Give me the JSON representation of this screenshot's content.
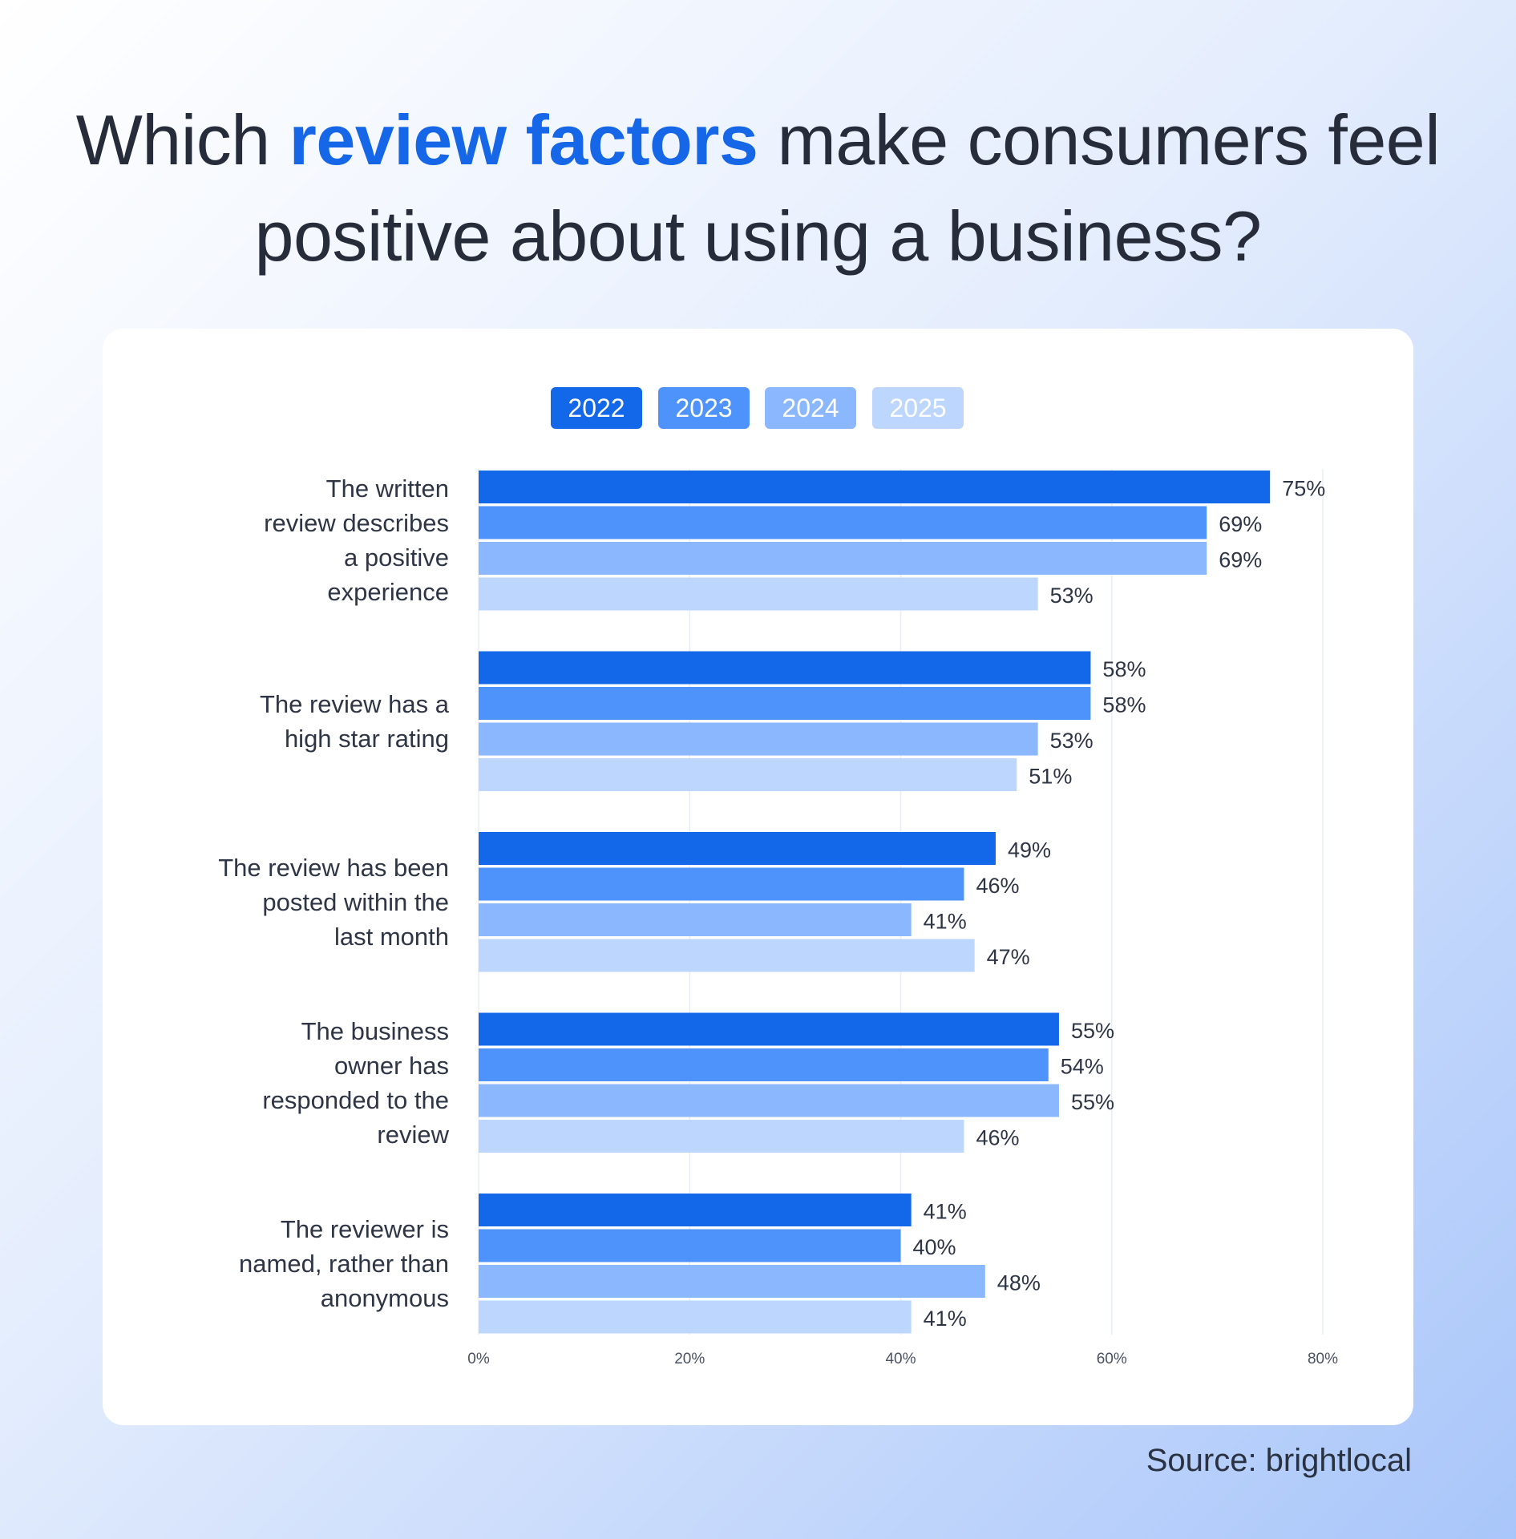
{
  "title": {
    "before": "Which ",
    "highlight": "review factors",
    "after": " make consumers feel positive about using a business?"
  },
  "source": "Source: brightlocal",
  "colors": {
    "title_highlight": "#1567e8",
    "series": [
      "#1268e9",
      "#4d93fb",
      "#8ab7fd",
      "#bdd6fd"
    ],
    "grid": "#e8eef7"
  },
  "chart_data": {
    "type": "bar",
    "orientation": "horizontal",
    "categories": [
      "The written review describes a positive experience",
      "The review has a high star rating",
      "The review has been posted within the last month",
      "The business owner has responded to the review",
      "The reviewer is named, rather than anonymous"
    ],
    "category_lines": [
      [
        "The written",
        "review describes",
        "a positive",
        "experience"
      ],
      [
        "The review has a",
        "high star rating"
      ],
      [
        "The review has been",
        "posted within the",
        "last month"
      ],
      [
        "The business",
        "owner has",
        "responded to the",
        "review"
      ],
      [
        "The reviewer is",
        "named, rather than",
        "anonymous"
      ]
    ],
    "series": [
      {
        "name": "2022",
        "values": [
          75,
          58,
          49,
          55,
          41
        ]
      },
      {
        "name": "2023",
        "values": [
          69,
          58,
          46,
          54,
          40
        ]
      },
      {
        "name": "2024",
        "values": [
          69,
          53,
          41,
          55,
          48
        ]
      },
      {
        "name": "2025",
        "values": [
          53,
          51,
          47,
          46,
          41
        ]
      }
    ],
    "value_labels": [
      [
        "75%",
        "58%",
        "49%",
        "55%",
        "41%"
      ],
      [
        "69%",
        "58%",
        "46%",
        "54%",
        "40%"
      ],
      [
        "69%",
        "53%",
        "41%",
        "55%",
        "48%"
      ],
      [
        "53%",
        "51%",
        "47%",
        "46%",
        "41%"
      ]
    ],
    "xlim": [
      0,
      80
    ],
    "x_ticks": [
      0,
      20,
      40,
      60,
      80
    ],
    "x_tick_labels": [
      "0%",
      "20%",
      "40%",
      "60%",
      "80%"
    ],
    "grid": true,
    "legend_position": "top-center"
  }
}
